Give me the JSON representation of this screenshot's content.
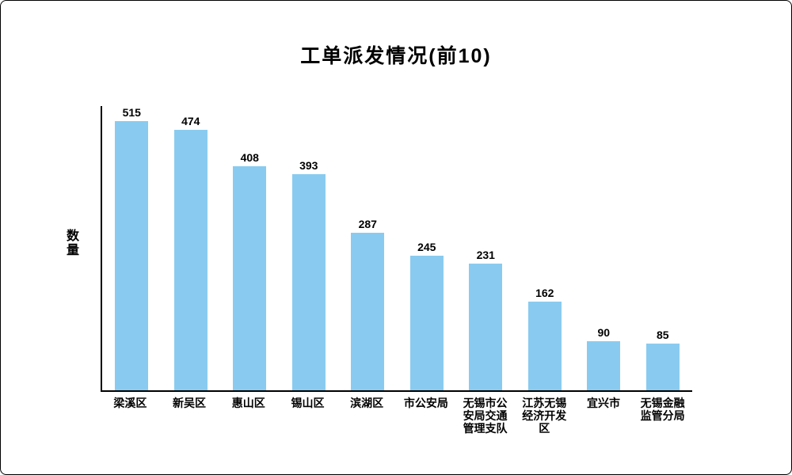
{
  "chart": {
    "title": "工单派发情况(前10)",
    "ylabel": "数量"
  },
  "colors": {
    "bar": "#89CBF0",
    "axis": "#000000",
    "background": "#FFFFFF",
    "text": "#000000"
  },
  "chart_data": {
    "type": "bar",
    "title": "工单派发情况(前10)",
    "xlabel": "",
    "ylabel": "数量",
    "categories": [
      "梁溪区",
      "新吴区",
      "惠山区",
      "锡山区",
      "滨湖区",
      "市公安局",
      "无锡市公安局交通管理支队",
      "江苏无锡经济开发区",
      "宜兴市",
      "无锡金融监管分局"
    ],
    "values": [
      515,
      474,
      408,
      393,
      287,
      245,
      231,
      162,
      90,
      85
    ],
    "ylim": [
      0,
      520
    ],
    "grid": false,
    "legend": false,
    "data_labels": true,
    "bar_color": "#89CBF0"
  }
}
